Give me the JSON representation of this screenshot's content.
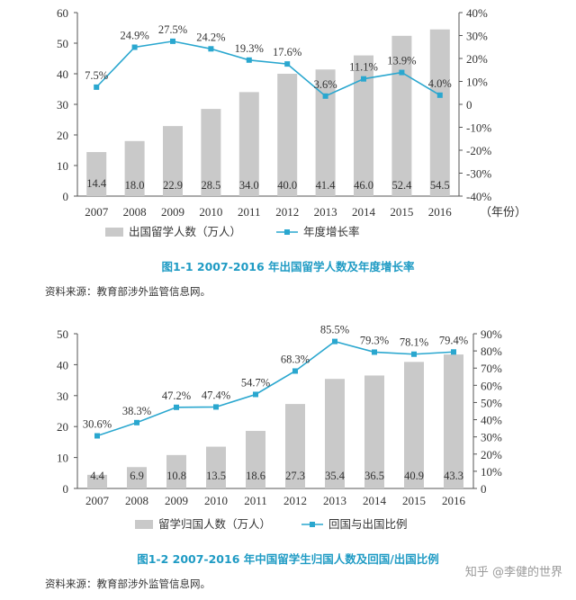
{
  "colors": {
    "bar": "#c9c9c9",
    "line": "#2aa7cf",
    "caption": "#1f9bc4",
    "axis": "#555555"
  },
  "chart_data": [
    {
      "type": "bar",
      "categories": [
        "2007",
        "2008",
        "2009",
        "2010",
        "2011",
        "2012",
        "2013",
        "2014",
        "2015",
        "2016"
      ],
      "x_unit_label": "（年份）",
      "series": [
        {
          "name": "出国留学人数（万人）",
          "type": "bar",
          "axis": "left",
          "values": [
            14.4,
            18.0,
            22.9,
            28.5,
            34.0,
            40.0,
            41.4,
            46.0,
            52.4,
            54.5
          ],
          "labels": [
            "14.4",
            "18.0",
            "22.9",
            "28.5",
            "34.0",
            "40.0",
            "41.4",
            "46.0",
            "52.4",
            "54.5"
          ]
        },
        {
          "name": "年度增长率",
          "type": "line",
          "axis": "right",
          "values": [
            7.5,
            24.9,
            27.5,
            24.2,
            19.3,
            17.6,
            3.6,
            11.1,
            13.9,
            4.0
          ],
          "labels": [
            "7.5%",
            "24.9%",
            "27.5%",
            "24.2%",
            "19.3%",
            "17.6%",
            "3.6%",
            "11.1%",
            "13.9%",
            "4.0%"
          ]
        }
      ],
      "ylim_left": [
        0,
        60
      ],
      "yticks_left": [
        "0",
        "10",
        "20",
        "30",
        "40",
        "50",
        "60"
      ],
      "ylim_right": [
        -40,
        40
      ],
      "yticks_right": [
        "-40%",
        "-30%",
        "-20%",
        "-10%",
        "0",
        "10%",
        "20%",
        "30%",
        "40%"
      ],
      "title": "图1-1   2007-2016 年出国留学人数及年度增长率",
      "source": "资料来源：教育部涉外监管信息网。"
    },
    {
      "type": "bar",
      "categories": [
        "2007",
        "2008",
        "2009",
        "2010",
        "2011",
        "2012",
        "2013",
        "2014",
        "2015",
        "2016"
      ],
      "series": [
        {
          "name": "留学归国人数（万人）",
          "type": "bar",
          "axis": "left",
          "values": [
            4.4,
            6.9,
            10.8,
            13.5,
            18.6,
            27.3,
            35.4,
            36.5,
            40.9,
            43.3
          ],
          "labels": [
            "4.4",
            "6.9",
            "10.8",
            "13.5",
            "18.6",
            "27.3",
            "35.4",
            "36.5",
            "40.9",
            "43.3"
          ]
        },
        {
          "name": "回国与出国比例",
          "type": "line",
          "axis": "right",
          "values": [
            30.6,
            38.3,
            47.2,
            47.4,
            54.7,
            68.3,
            85.5,
            79.3,
            78.1,
            79.4
          ],
          "labels": [
            "30.6%",
            "38.3%",
            "47.2%",
            "47.4%",
            "54.7%",
            "68.3%",
            "85.5%",
            "79.3%",
            "78.1%",
            "79.4%"
          ]
        }
      ],
      "ylim_left": [
        0,
        50
      ],
      "yticks_left": [
        "0",
        "10",
        "20",
        "30",
        "40",
        "50"
      ],
      "ylim_right": [
        0,
        90
      ],
      "yticks_right": [
        "0",
        "10%",
        "20%",
        "30%",
        "40%",
        "50%",
        "60%",
        "70%",
        "80%",
        "90%"
      ],
      "title": "图1-2   2007-2016 年中国留学生归国人数及回国/出国比例",
      "source": "资料来源：教育部涉外监管信息网。"
    }
  ],
  "watermark": "知乎 @李健的世界"
}
